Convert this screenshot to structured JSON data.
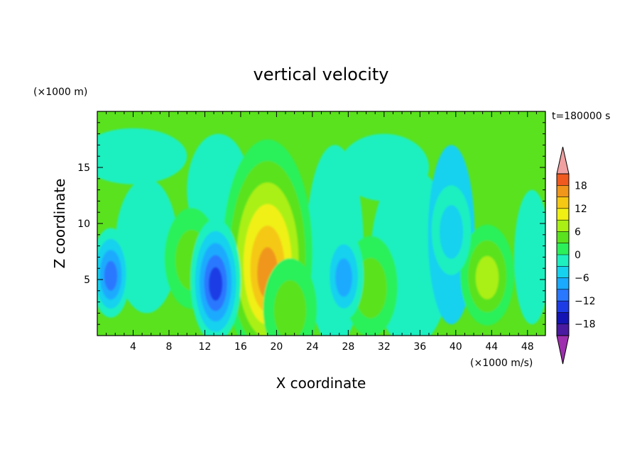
{
  "chart_data": {
    "type": "heatmap",
    "title": "vertical velocity",
    "xlabel": "X coordinate",
    "ylabel": "Z coordinate",
    "x_unit": "(×1000 m/s)",
    "y_unit": "(×1000 m)",
    "time_label": "t=180000 s",
    "xlim": [
      0,
      50
    ],
    "ylim": [
      0,
      20
    ],
    "x_ticks": [
      4,
      8,
      12,
      16,
      20,
      24,
      28,
      32,
      36,
      40,
      44,
      48
    ],
    "y_ticks": [
      5,
      10,
      15
    ],
    "colorbar": {
      "levels": [
        -21,
        -18,
        -15,
        -12,
        -9,
        -6,
        -3,
        0,
        3,
        6,
        9,
        12,
        15,
        18,
        21
      ],
      "tick_labels": [
        "18",
        "12",
        "6",
        "0",
        "−6",
        "−12",
        "−18"
      ],
      "tick_values": [
        18,
        12,
        6,
        0,
        -6,
        -12,
        -18
      ],
      "colors": [
        "#9e2fae",
        "#4a1aa0",
        "#1414b4",
        "#1e3ce6",
        "#2a78ff",
        "#1aaaff",
        "#16d2ee",
        "#1ef0c0",
        "#2cf05a",
        "#5ae21e",
        "#aaf014",
        "#f0f014",
        "#f5c814",
        "#f0961a",
        "#f05a1e",
        "#ee1e1e",
        "#f0a0a0"
      ]
    },
    "features": [
      {
        "kind": "updraft",
        "x": 19.0,
        "z": 5.0,
        "peak": 17
      },
      {
        "kind": "updraft",
        "x": 43.5,
        "z": 5.0,
        "peak": 9
      },
      {
        "kind": "updraft",
        "x": 30.5,
        "z": 4.0,
        "peak": 6
      },
      {
        "kind": "updraft",
        "x": 21.5,
        "z": 2.0,
        "peak": 6
      },
      {
        "kind": "updraft",
        "x": 10.5,
        "z": 6.5,
        "peak": 4
      },
      {
        "kind": "downdraft",
        "x": 13.2,
        "z": 4.5,
        "peak": -14
      },
      {
        "kind": "downdraft",
        "x": 1.5,
        "z": 5.2,
        "peak": -10
      },
      {
        "kind": "downdraft",
        "x": 27.5,
        "z": 5.0,
        "peak": -8
      },
      {
        "kind": "downdraft",
        "x": 39.5,
        "z": 9.0,
        "peak": -4
      }
    ]
  }
}
